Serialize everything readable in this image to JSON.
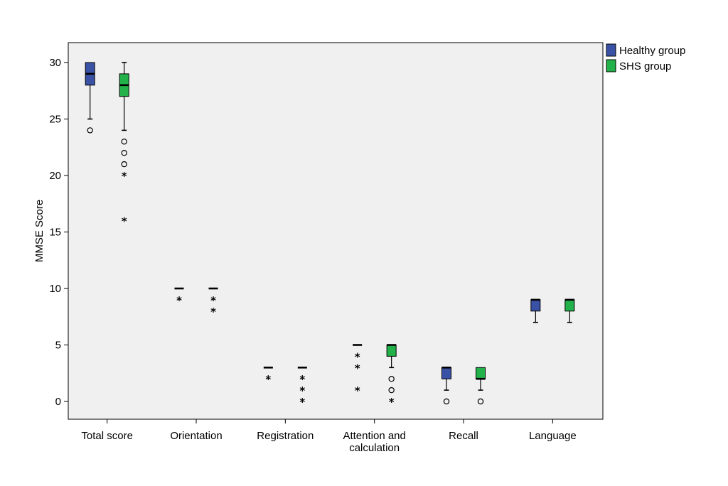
{
  "chart_data": {
    "type": "box",
    "ylabel": "MMSE Score",
    "xlabel": "",
    "ylim": [
      -1.5,
      33
    ],
    "yticks": [
      0,
      5,
      10,
      15,
      20,
      25,
      30
    ],
    "ytick_labels": [
      "0",
      "5",
      "10",
      "15",
      "20",
      "25",
      "30"
    ],
    "grid": false,
    "legend_position": "outside-top-right",
    "categories": [
      {
        "label_lines": [
          "Total score"
        ]
      },
      {
        "label_lines": [
          "Orientation"
        ]
      },
      {
        "label_lines": [
          "Registration"
        ]
      },
      {
        "label_lines": [
          "Attention and",
          "calculation"
        ]
      },
      {
        "label_lines": [
          "Recall"
        ]
      },
      {
        "label_lines": [
          "Language"
        ]
      }
    ],
    "series": [
      {
        "name": "Healthy group",
        "color": "#3a52a6",
        "boxes": [
          {
            "whislo": 25,
            "q1": 28,
            "med": 29,
            "q3": 30,
            "whishi": 30,
            "outliers": [
              24
            ],
            "extremes": []
          },
          {
            "whislo": 10,
            "q1": 10,
            "med": 10,
            "q3": 10,
            "whishi": 10,
            "outliers": [],
            "extremes": [
              9
            ]
          },
          {
            "whislo": 3,
            "q1": 3,
            "med": 3,
            "q3": 3,
            "whishi": 3,
            "outliers": [],
            "extremes": [
              2
            ]
          },
          {
            "whislo": 5,
            "q1": 5,
            "med": 5,
            "q3": 5,
            "whishi": 5,
            "outliers": [],
            "extremes": [
              4,
              3,
              1
            ]
          },
          {
            "whislo": 1,
            "q1": 2,
            "med": 3,
            "q3": 3,
            "whishi": 3,
            "outliers": [
              0
            ],
            "extremes": []
          },
          {
            "whislo": 7,
            "q1": 8,
            "med": 9,
            "q3": 9,
            "whishi": 9,
            "outliers": [],
            "extremes": []
          }
        ]
      },
      {
        "name": "SHS group",
        "color": "#23b14a",
        "boxes": [
          {
            "whislo": 24,
            "q1": 27,
            "med": 28,
            "q3": 29,
            "whishi": 30,
            "outliers": [
              23,
              22,
              21
            ],
            "extremes": [
              20,
              16
            ]
          },
          {
            "whislo": 10,
            "q1": 10,
            "med": 10,
            "q3": 10,
            "whishi": 10,
            "outliers": [],
            "extremes": [
              9,
              8
            ]
          },
          {
            "whislo": 3,
            "q1": 3,
            "med": 3,
            "q3": 3,
            "whishi": 3,
            "outliers": [],
            "extremes": [
              2,
              1,
              0
            ]
          },
          {
            "whislo": 3,
            "q1": 4,
            "med": 5,
            "q3": 5,
            "whishi": 5,
            "outliers": [
              2,
              1
            ],
            "extremes": [
              0
            ]
          },
          {
            "whislo": 1,
            "q1": 2,
            "med": 2,
            "q3": 3,
            "whishi": 3,
            "outliers": [
              0
            ],
            "extremes": []
          },
          {
            "whislo": 7,
            "q1": 8,
            "med": 9,
            "q3": 9,
            "whishi": 9,
            "outliers": [],
            "extremes": []
          }
        ]
      }
    ]
  }
}
